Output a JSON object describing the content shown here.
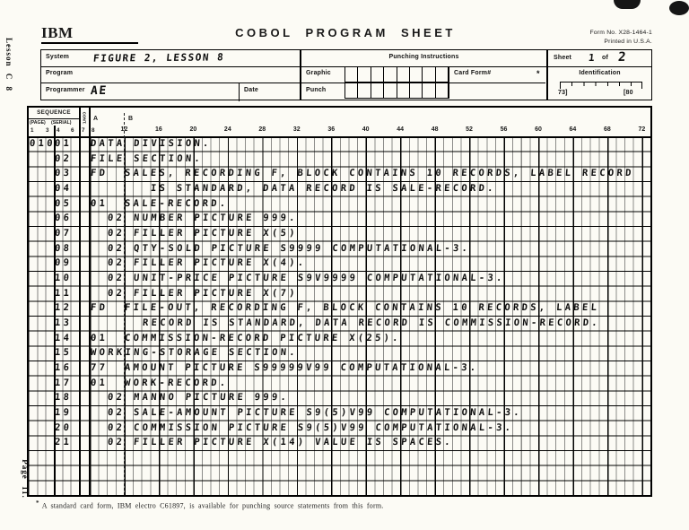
{
  "page": {
    "side_label_top": "Lesson C 8",
    "side_label_bottom": "Page 11.",
    "footnote_star": "*",
    "footnote": "A standard card form, IBM electro C61897, is available for punching source statements from this form."
  },
  "header": {
    "logo": "IBM",
    "title": "COBOL PROGRAM SHEET",
    "form_no_line1": "Form No. X28-1464-1",
    "form_no_line2": "Printed in U.S.A.",
    "fields": {
      "system_label": "System",
      "system_value": "FIGURE 2, LESSON 8",
      "program_label": "Program",
      "programmer_label": "Programmer",
      "programmer_value": "AE",
      "date_label": "Date",
      "punching_instructions_label": "Punching Instructions",
      "graphic_label": "Graphic",
      "punch_label": "Punch",
      "card_form_label": "Card Form#",
      "card_form_star": "*",
      "sheet_label": "Sheet",
      "sheet_value_1": "1",
      "sheet_of": "of",
      "sheet_value_2": "2",
      "identification_label": "Identification",
      "id_col_start": "73]",
      "id_col_end": "[80"
    }
  },
  "grid": {
    "sequence_label": "SEQUENCE",
    "page_label": "(PAGE)",
    "serial_label": "(SERIAL)",
    "cont_label": "CONT.",
    "num_1": "1",
    "num_3": "3",
    "num_4": "4",
    "num_6": "6",
    "num_7": "7",
    "num_8": "8",
    "area_a": "A",
    "area_b": "B",
    "column_numbers": [
      12,
      16,
      20,
      24,
      28,
      32,
      36,
      40,
      44,
      48,
      52,
      56,
      60,
      64,
      68,
      72
    ]
  },
  "code_lines": [
    {
      "page": "010",
      "serial": "01",
      "segments": [
        {
          "col": 8,
          "text": "DATA DIVISION."
        }
      ]
    },
    {
      "serial": "02",
      "segments": [
        {
          "col": 8,
          "text": "FILE SECTION."
        }
      ]
    },
    {
      "serial": "03",
      "segments": [
        {
          "col": 8,
          "text": "FD"
        },
        {
          "col": 12,
          "text": "SALES, RECORDING F, BLOCK CONTAINS 10 RECORDS, LABEL RECORD"
        }
      ]
    },
    {
      "serial": "04",
      "segments": [
        {
          "col": 15,
          "text": "IS STANDARD, DATA RECORD IS SALE-RECORD."
        }
      ]
    },
    {
      "serial": "05",
      "segments": [
        {
          "col": 8,
          "text": "01"
        },
        {
          "col": 12,
          "text": "SALE-RECORD."
        }
      ]
    },
    {
      "serial": "06",
      "segments": [
        {
          "col": 10,
          "text": "02"
        },
        {
          "col": 13,
          "text": "NUMBER PICTURE 999."
        }
      ]
    },
    {
      "serial": "07",
      "segments": [
        {
          "col": 10,
          "text": "02"
        },
        {
          "col": 13,
          "text": "FILLER PICTURE X(5)"
        }
      ]
    },
    {
      "serial": "08",
      "segments": [
        {
          "col": 10,
          "text": "02"
        },
        {
          "col": 13,
          "text": "QTY-SOLD PICTURE S9999 COMPUTATIONAL-3."
        }
      ]
    },
    {
      "serial": "09",
      "segments": [
        {
          "col": 10,
          "text": "02"
        },
        {
          "col": 13,
          "text": "FILLER PICTURE X(4)."
        }
      ]
    },
    {
      "serial": "10",
      "segments": [
        {
          "col": 10,
          "text": "02"
        },
        {
          "col": 13,
          "text": "UNIT-PRICE PICTURE S9V9999 COMPUTATIONAL-3."
        }
      ]
    },
    {
      "serial": "11",
      "segments": [
        {
          "col": 10,
          "text": "02"
        },
        {
          "col": 13,
          "text": "FILLER PICTURE X(7)"
        }
      ]
    },
    {
      "serial": "12",
      "segments": [
        {
          "col": 8,
          "text": "FD"
        },
        {
          "col": 12,
          "text": "FILE-OUT, RECORDING F, BLOCK CONTAINS 10 RECORDS, LABEL"
        }
      ]
    },
    {
      "serial": "13",
      "segments": [
        {
          "col": 14,
          "text": "RECORD IS STANDARD, DATA RECORD IS COMMISSION-RECORD."
        }
      ]
    },
    {
      "serial": "14",
      "segments": [
        {
          "col": 8,
          "text": "01"
        },
        {
          "col": 12,
          "text": "COMMISSION-RECORD PICTURE X(25)."
        }
      ]
    },
    {
      "serial": "15",
      "segments": [
        {
          "col": 8,
          "text": "WORKING-STORAGE SECTION."
        }
      ]
    },
    {
      "serial": "16",
      "segments": [
        {
          "col": 8,
          "text": "77"
        },
        {
          "col": 12,
          "text": "AMOUNT PICTURE S99999V99 COMPUTATIONAL-3."
        }
      ]
    },
    {
      "serial": "17",
      "segments": [
        {
          "col": 8,
          "text": "01"
        },
        {
          "col": 12,
          "text": "WORK-RECORD."
        }
      ]
    },
    {
      "serial": "18",
      "segments": [
        {
          "col": 10,
          "text": "02"
        },
        {
          "col": 13,
          "text": "MANNO PICTURE 999."
        }
      ]
    },
    {
      "serial": "19",
      "segments": [
        {
          "col": 10,
          "text": "02"
        },
        {
          "col": 13,
          "text": "SALE-AMOUNT PICTURE S9(5)V99 COMPUTATIONAL-3."
        }
      ]
    },
    {
      "serial": "20",
      "segments": [
        {
          "col": 10,
          "text": "02"
        },
        {
          "col": 13,
          "text": "COMMISSION PICTURE S9(5)V99 COMPUTATIONAL-3."
        }
      ]
    },
    {
      "serial": "21",
      "segments": [
        {
          "col": 10,
          "text": "02"
        },
        {
          "col": 13,
          "text": "FILLER PICTURE X(14) VALUE IS SPACES."
        }
      ]
    }
  ],
  "empty_rows": 3
}
